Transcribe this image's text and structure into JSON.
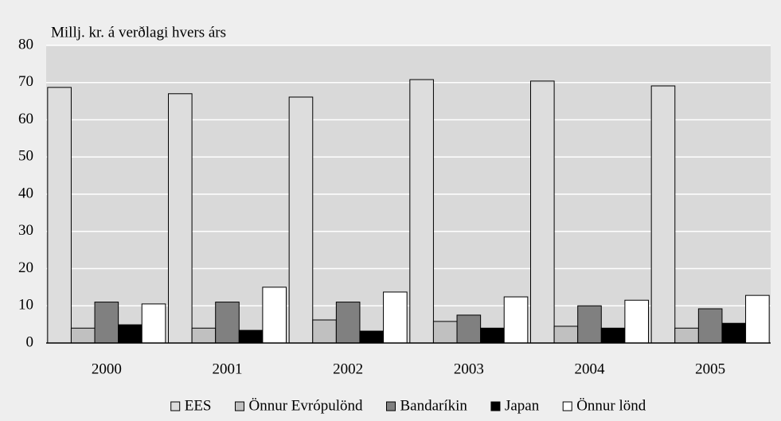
{
  "chart_data": {
    "type": "bar",
    "y_axis_label": "Millj. kr. á verðlagi hvers árs",
    "categories": [
      "2000",
      "2001",
      "2002",
      "2003",
      "2004",
      "2005"
    ],
    "series": [
      {
        "name": "EES",
        "color": "#dddddd",
        "values": [
          68.7,
          67,
          66.1,
          70.8,
          70.4,
          69.1
        ]
      },
      {
        "name": "Önnur Evrópulönd",
        "color": "#c0c0c0",
        "values": [
          4,
          4,
          6.2,
          5.8,
          4.5,
          4
        ]
      },
      {
        "name": "Bandaríkin",
        "color": "#808080",
        "values": [
          11,
          11,
          11,
          7.5,
          10,
          9.2
        ]
      },
      {
        "name": "Japan",
        "color": "#000000",
        "values": [
          4.9,
          3.4,
          3.2,
          4,
          4,
          5.3
        ]
      },
      {
        "name": "Önnur lönd",
        "color": "#ffffff",
        "values": [
          10.5,
          15,
          13.7,
          12.4,
          11.5,
          12.8
        ]
      }
    ],
    "ylim": [
      0,
      80
    ],
    "yticks": [
      0,
      10,
      20,
      30,
      40,
      50,
      60,
      70,
      80
    ],
    "grid": true,
    "legend": "bottom"
  }
}
